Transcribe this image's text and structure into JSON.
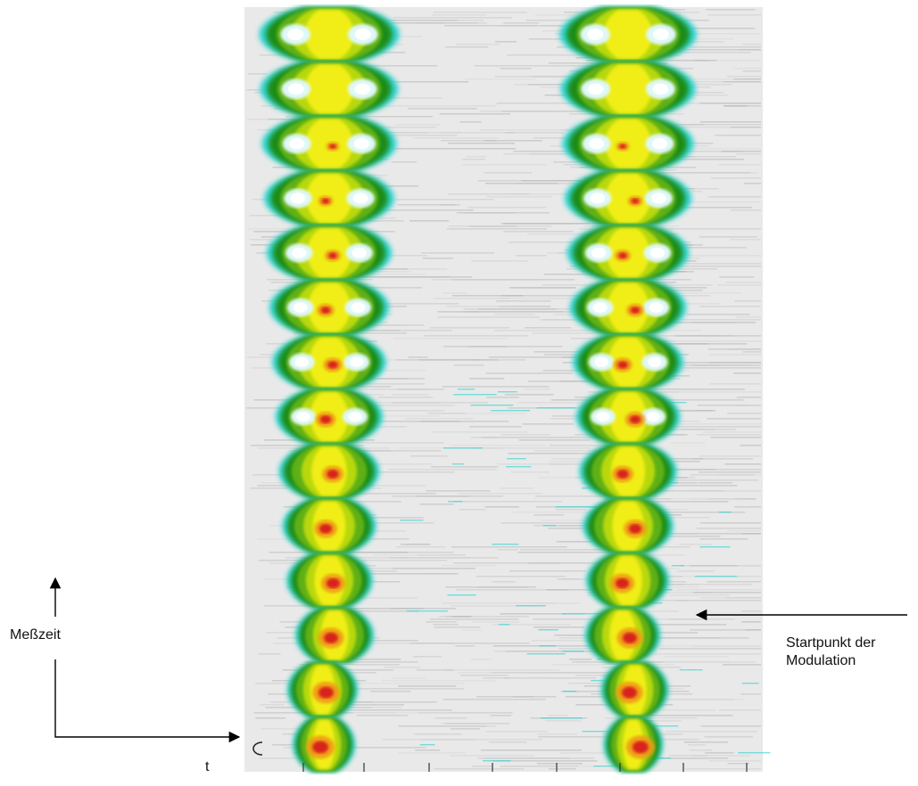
{
  "labels": {
    "measure_time": "Meßzeit",
    "t_axis": "t",
    "start_line1": "Startpunkt der",
    "start_line2": "Modulation"
  },
  "colors": {
    "background_noise": "#c4c4c4",
    "cyan": "#25d3d0",
    "dark_green": "#1f8b18",
    "green": "#5fb014",
    "yellow_green": "#b8d80f",
    "yellow": "#f0ee12",
    "orange": "#f19a17",
    "red": "#d8231e",
    "arrow": "#000000"
  },
  "plot": {
    "lobes_per_column": 14
  }
}
